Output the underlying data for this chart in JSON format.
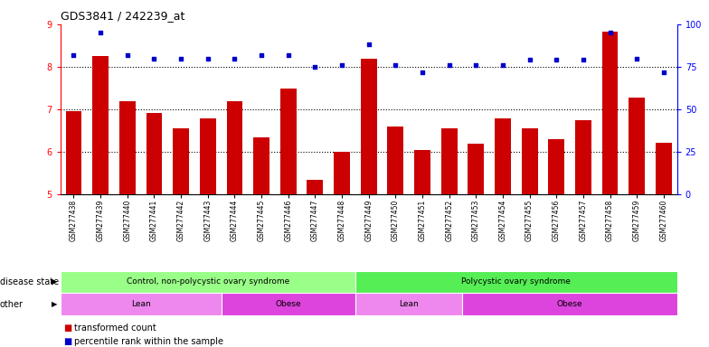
{
  "title": "GDS3841 / 242239_at",
  "samples": [
    "GSM277438",
    "GSM277439",
    "GSM277440",
    "GSM277441",
    "GSM277442",
    "GSM277443",
    "GSM277444",
    "GSM277445",
    "GSM277446",
    "GSM277447",
    "GSM277448",
    "GSM277449",
    "GSM277450",
    "GSM277451",
    "GSM277452",
    "GSM277453",
    "GSM277454",
    "GSM277455",
    "GSM277456",
    "GSM277457",
    "GSM277458",
    "GSM277459",
    "GSM277460"
  ],
  "transformed_count": [
    6.95,
    8.25,
    7.18,
    6.92,
    6.55,
    6.78,
    7.2,
    6.35,
    7.48,
    5.35,
    6.0,
    8.18,
    6.6,
    6.05,
    6.55,
    6.2,
    6.78,
    6.55,
    6.3,
    6.75,
    8.82,
    7.28,
    6.22
  ],
  "percentile_rank": [
    82,
    95,
    82,
    80,
    80,
    80,
    80,
    82,
    82,
    75,
    76,
    88,
    76,
    72,
    76,
    76,
    76,
    79,
    79,
    79,
    95,
    80,
    72
  ],
  "ylim_left": [
    5,
    9
  ],
  "ylim_right": [
    0,
    100
  ],
  "yticks_left": [
    5,
    6,
    7,
    8,
    9
  ],
  "yticks_right": [
    0,
    25,
    50,
    75,
    100
  ],
  "bar_color": "#cc0000",
  "dot_color": "#0000cc",
  "disease_state_groups": [
    {
      "label": "Control, non-polycystic ovary syndrome",
      "start": 0,
      "end": 11,
      "color": "#99ff88"
    },
    {
      "label": "Polycystic ovary syndrome",
      "start": 11,
      "end": 23,
      "color": "#55ee55"
    }
  ],
  "other_groups": [
    {
      "label": "Lean",
      "start": 0,
      "end": 6,
      "color": "#ee88ee"
    },
    {
      "label": "Obese",
      "start": 6,
      "end": 11,
      "color": "#dd44dd"
    },
    {
      "label": "Lean",
      "start": 11,
      "end": 15,
      "color": "#ee88ee"
    },
    {
      "label": "Obese",
      "start": 15,
      "end": 23,
      "color": "#dd44dd"
    }
  ],
  "legend_items": [
    {
      "label": "transformed count",
      "color": "#cc0000"
    },
    {
      "label": "percentile rank within the sample",
      "color": "#0000cc"
    }
  ],
  "disease_state_label": "disease state",
  "other_label": "other",
  "background_color": "#ffffff"
}
